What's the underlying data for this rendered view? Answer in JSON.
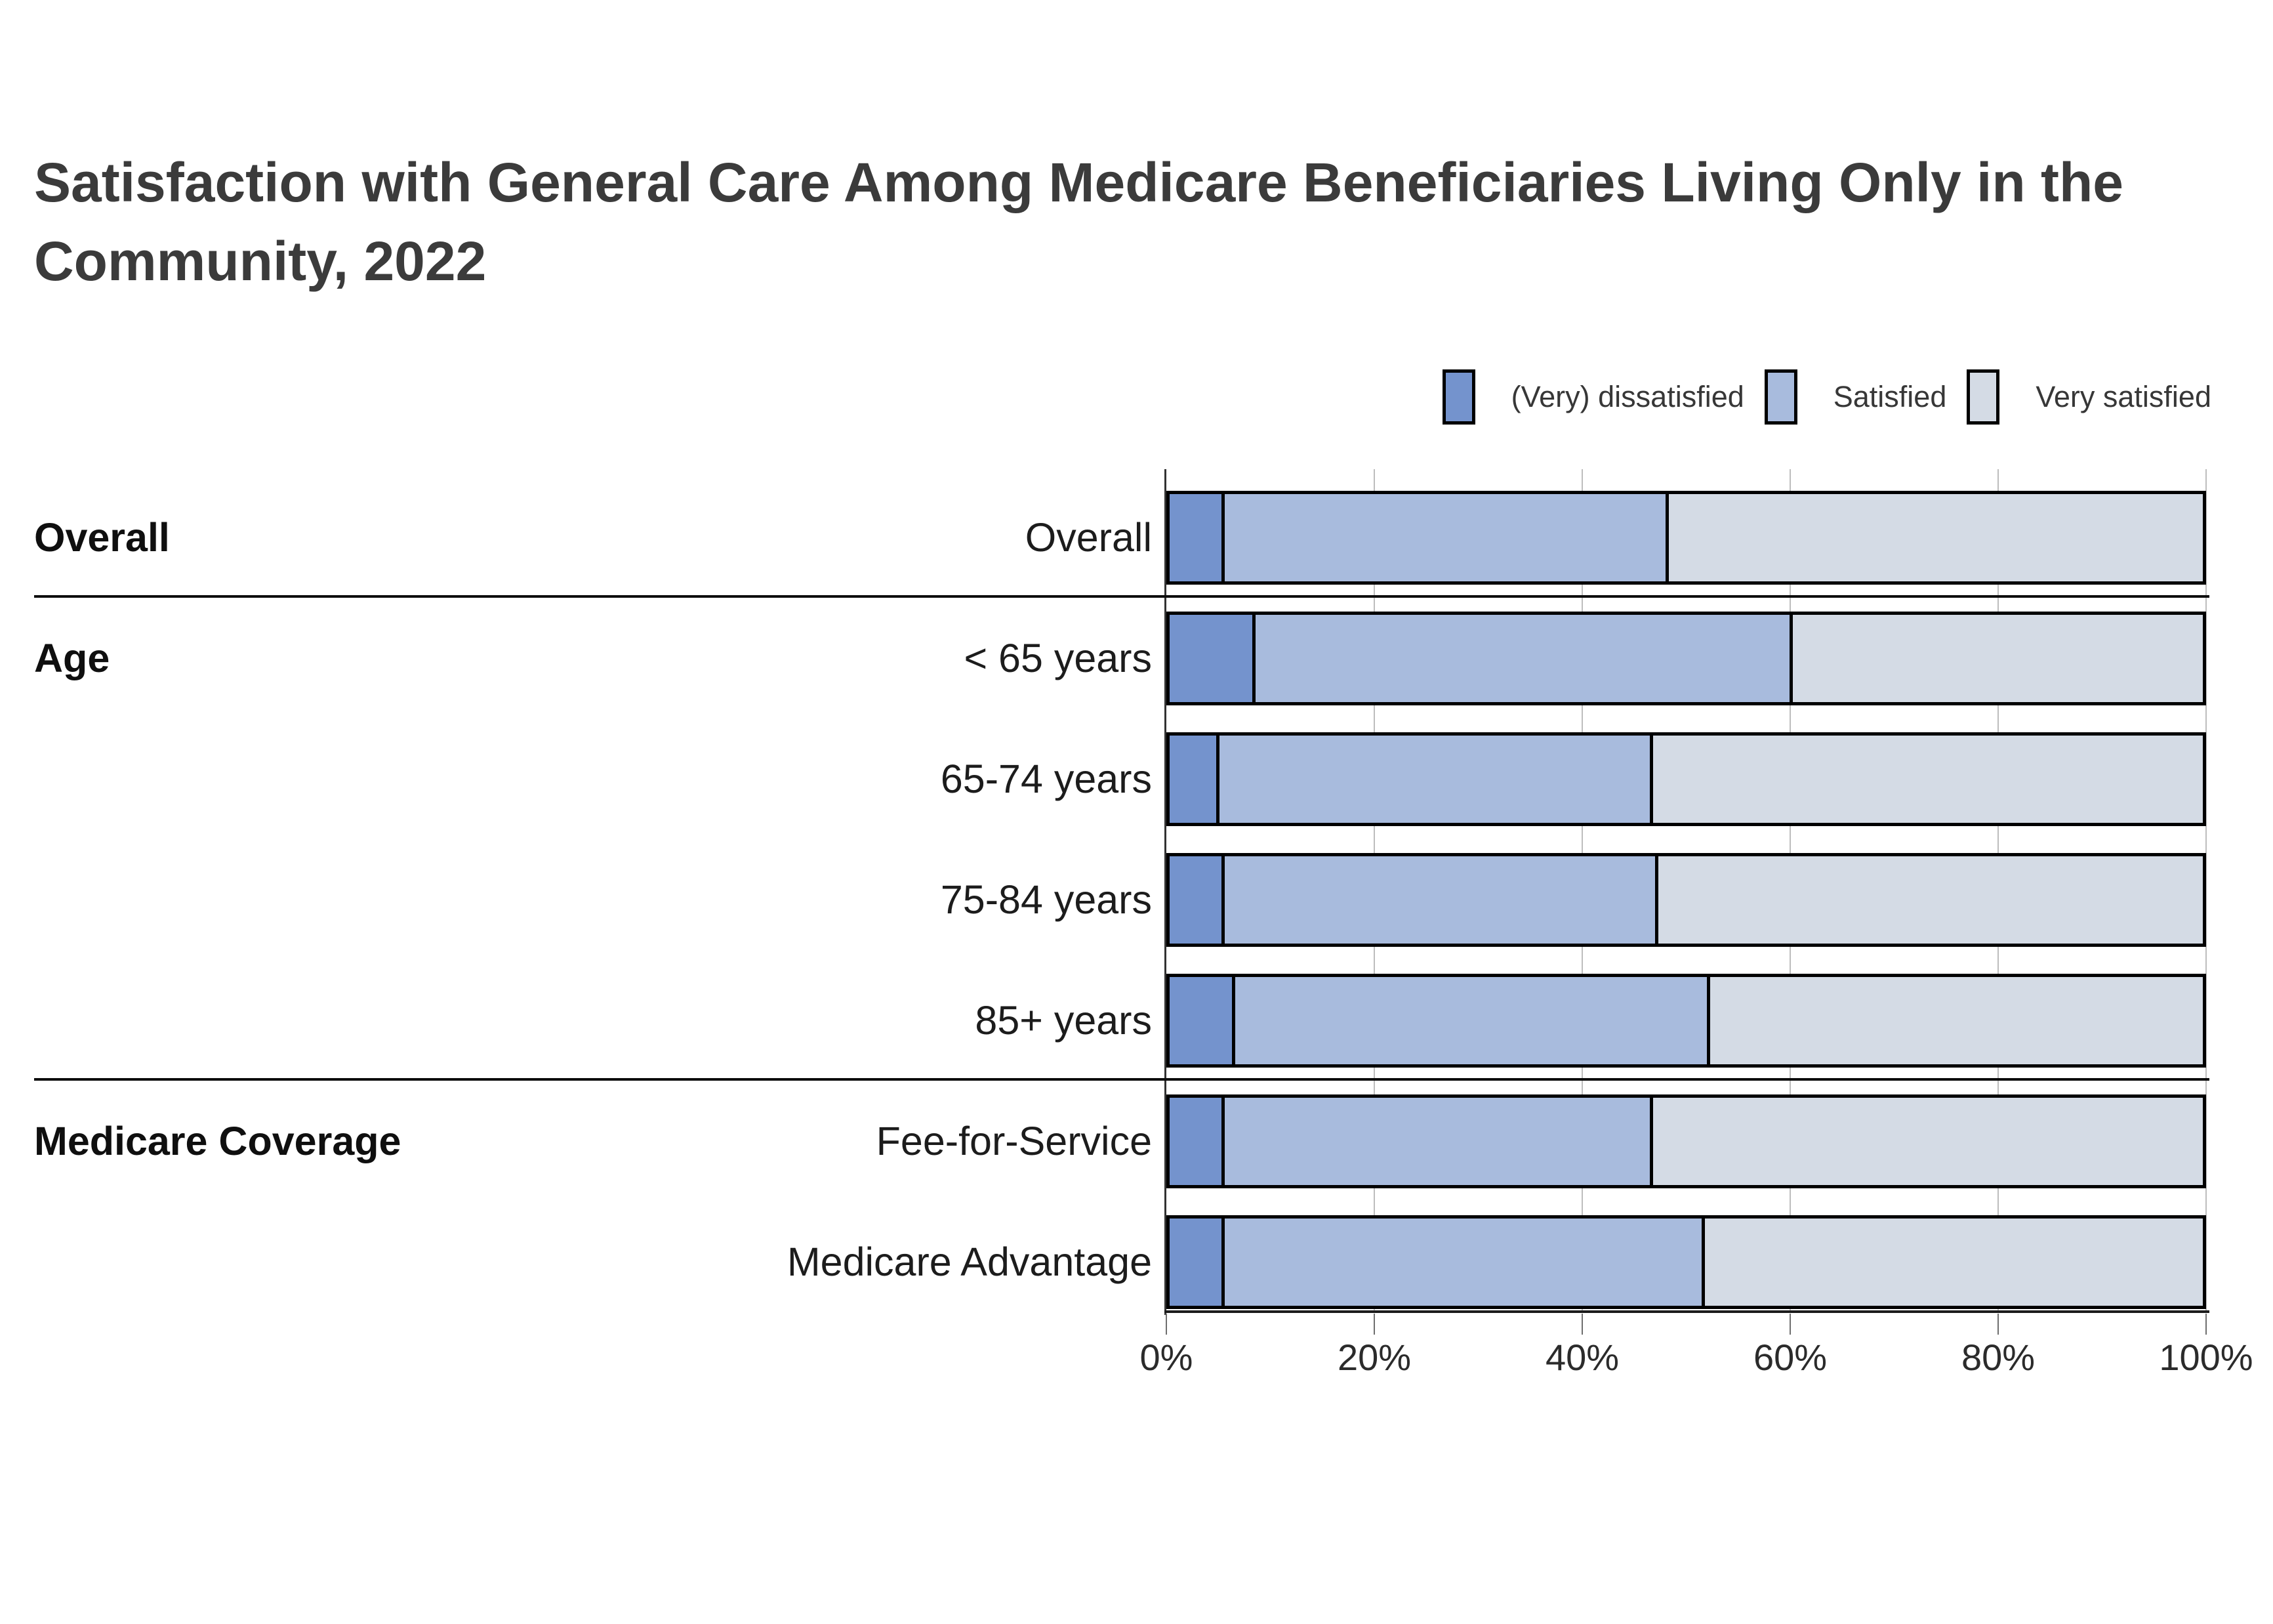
{
  "page": {
    "background": "#ffffff"
  },
  "title": {
    "line1": "Satisfaction with General Care Among Medicare Beneficiaries Living Only in the",
    "line2": "Community, 2022",
    "color": "#3b3b3b"
  },
  "legend": {
    "items": [
      {
        "label": "(Very) dissatisfied",
        "color": "#7493cd"
      },
      {
        "label": "Satisfied",
        "color": "#a8bbdd"
      },
      {
        "label": "Very satisfied",
        "color": "#d4dbe5"
      }
    ]
  },
  "chart_data": {
    "type": "bar",
    "orientation": "horizontal",
    "stacked": true,
    "unit": "percent",
    "title": "Satisfaction with General Care Among Medicare Beneficiaries Living Only in the Community, 2022",
    "categories": [
      "Overall",
      "< 65 years",
      "65-74 years",
      "75-84 years",
      "85+ years",
      "Fee-for-Service",
      "Medicare Advantage"
    ],
    "row_groups": [
      {
        "label": "Overall",
        "start_row": 0,
        "rows": [
          "Overall"
        ]
      },
      {
        "label": "Age",
        "start_row": 1,
        "rows": [
          "< 65 years",
          "65-74 years",
          "75-84 years",
          "85+ years"
        ]
      },
      {
        "label": "Medicare Coverage",
        "start_row": 5,
        "rows": [
          "Fee-for-Service",
          "Medicare Advantage"
        ]
      }
    ],
    "series": [
      {
        "name": "(Very) dissatisfied",
        "color": "#7493cd",
        "values": [
          5,
          8,
          4.5,
          5,
          6,
          5,
          5
        ]
      },
      {
        "name": "Satisfied",
        "color": "#a8bbdd",
        "values": [
          43,
          52,
          42,
          42,
          46,
          41.5,
          46.5
        ]
      },
      {
        "name": "Very satisfied",
        "color": "#d4dbe5",
        "values": [
          52,
          40,
          53.5,
          53,
          48,
          53.5,
          48.5
        ]
      }
    ],
    "x_axis": {
      "ticks": [
        "0%",
        "20%",
        "40%",
        "60%",
        "80%",
        "100%"
      ],
      "min": 0,
      "max": 100
    },
    "grid": true,
    "legend_position": "top-right",
    "bar_border_color": "#000000",
    "gridline_color": "#bdbdbd",
    "separator_color": "#0d0d0d"
  }
}
